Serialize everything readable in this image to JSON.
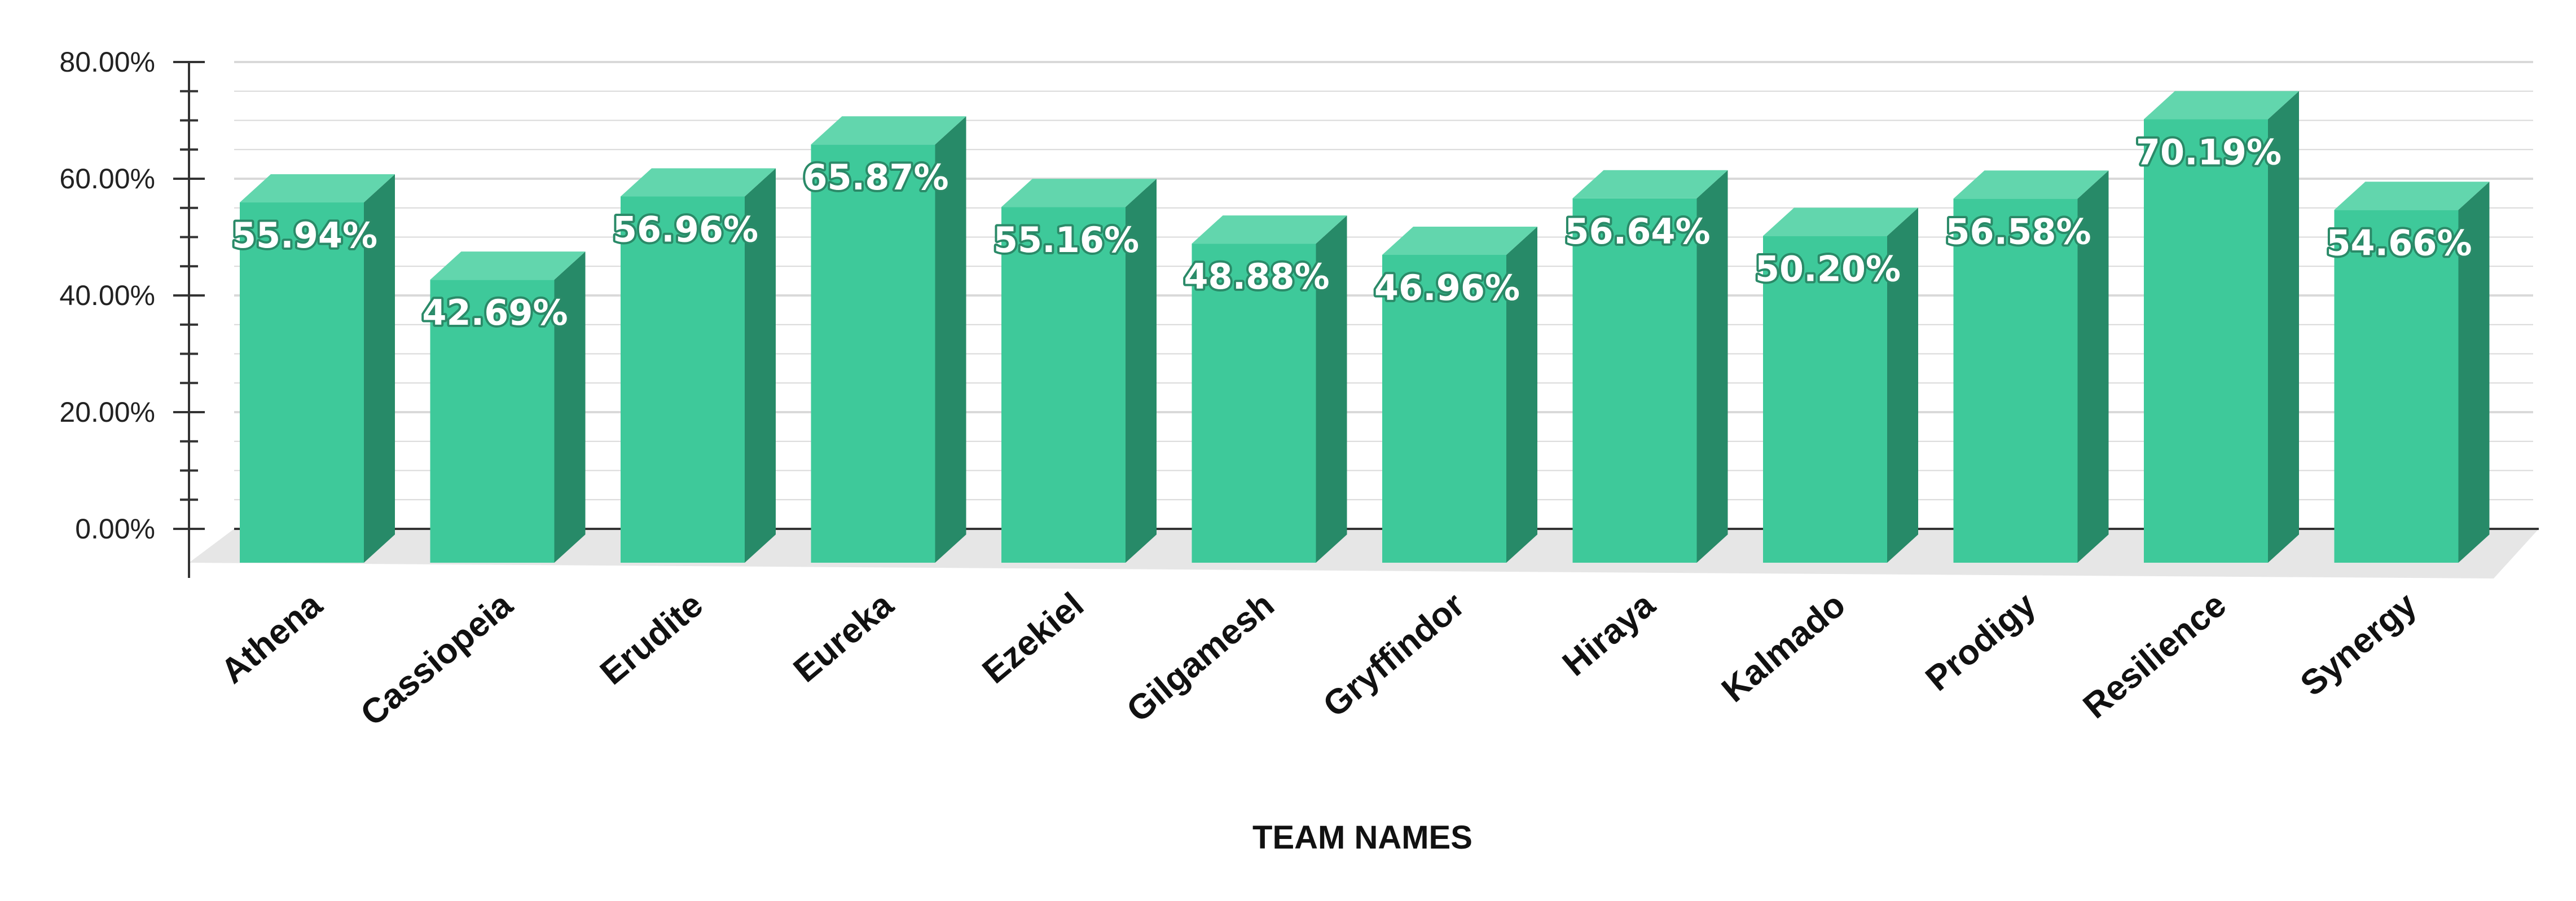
{
  "chart_data": {
    "type": "bar",
    "categories": [
      "Athena",
      "Cassiopeia",
      "Erudite",
      "Eureka",
      "Ezekiel",
      "Gilgamesh",
      "Gryffindor",
      "Hiraya",
      "Kalmado",
      "Prodigy",
      "Resilience",
      "Synergy"
    ],
    "series": [
      {
        "values": [
          55.94,
          42.69,
          56.96,
          65.87,
          55.16,
          48.88,
          46.96,
          56.64,
          50.2,
          56.58,
          70.19,
          54.66
        ],
        "labels": [
          "55.94%",
          "42.69%",
          "56.96%",
          "65.87%",
          "55.16%",
          "48.88%",
          "46.96%",
          "56.64%",
          "50.20%",
          "56.58%",
          "70.19%",
          "54.66%"
        ]
      }
    ],
    "yticks": [
      0,
      20,
      40,
      60,
      80
    ],
    "ytick_labels": [
      "0.00%",
      "20.00%",
      "40.00%",
      "60.00%",
      "80.00%"
    ],
    "ylim": [
      0,
      80
    ],
    "xlabel": "TEAM NAMES",
    "ylabel": "",
    "grid": true,
    "legend": "none",
    "colors": {
      "bar_front": "#3ec99a",
      "bar_top": "#62d6ad",
      "bar_side": "#278a68",
      "floor": "#e6e6e6",
      "gridline": "#d9d9d9"
    }
  }
}
